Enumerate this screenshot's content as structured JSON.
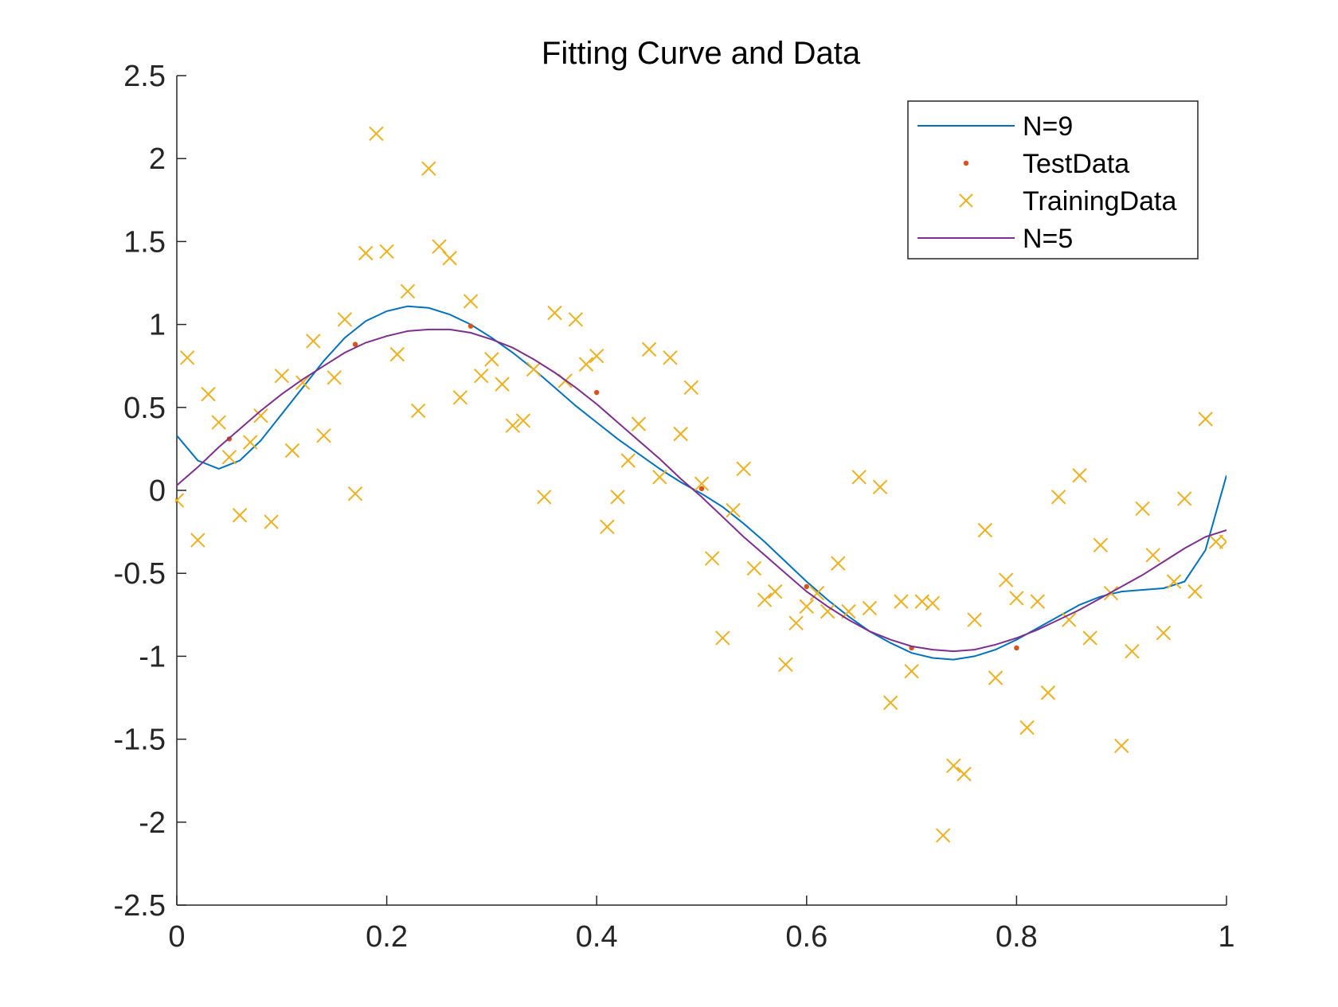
{
  "chart_data": {
    "type": "scatter",
    "title": "Fitting Curve and Data",
    "xlabel": "",
    "ylabel": "",
    "xlim": [
      0,
      1
    ],
    "ylim": [
      -2.5,
      2.5
    ],
    "x_ticks": [
      "0",
      "0.2",
      "0.4",
      "0.6",
      "0.8",
      "1"
    ],
    "y_ticks": [
      "2.5",
      "2",
      "1.5",
      "1",
      "0.5",
      "0",
      "-0.5",
      "-1",
      "-1.5",
      "-2",
      "-2.5"
    ],
    "grid": false,
    "legend_position": "top-right",
    "colors": {
      "n9": "#0072BD",
      "test": "#D95319",
      "train": "#EDB120",
      "n5": "#7E2F8E"
    },
    "legend": [
      "N=9",
      "TestData",
      "TrainingData",
      "N=5"
    ],
    "series": [
      {
        "name": "N=9",
        "kind": "line",
        "x": [
          0,
          0.02,
          0.04,
          0.06,
          0.08,
          0.1,
          0.12,
          0.14,
          0.16,
          0.18,
          0.2,
          0.22,
          0.24,
          0.26,
          0.28,
          0.3,
          0.32,
          0.34,
          0.36,
          0.38,
          0.4,
          0.42,
          0.44,
          0.46,
          0.48,
          0.5,
          0.52,
          0.54,
          0.56,
          0.58,
          0.6,
          0.62,
          0.64,
          0.66,
          0.68,
          0.7,
          0.72,
          0.74,
          0.76,
          0.78,
          0.8,
          0.82,
          0.84,
          0.86,
          0.88,
          0.9,
          0.92,
          0.94,
          0.96,
          0.98,
          1.0
        ],
        "y": [
          0.33,
          0.18,
          0.13,
          0.18,
          0.3,
          0.46,
          0.62,
          0.78,
          0.92,
          1.02,
          1.08,
          1.11,
          1.1,
          1.06,
          1.0,
          0.92,
          0.83,
          0.73,
          0.62,
          0.51,
          0.41,
          0.31,
          0.22,
          0.13,
          0.05,
          -0.02,
          -0.1,
          -0.2,
          -0.31,
          -0.43,
          -0.55,
          -0.66,
          -0.76,
          -0.85,
          -0.92,
          -0.98,
          -1.01,
          -1.02,
          -1.0,
          -0.96,
          -0.9,
          -0.83,
          -0.76,
          -0.69,
          -0.64,
          -0.61,
          -0.6,
          -0.59,
          -0.55,
          -0.36,
          0.09
        ]
      },
      {
        "name": "TestData",
        "kind": "points",
        "x": [
          0.05,
          0.17,
          0.28,
          0.4,
          0.5,
          0.6,
          0.7,
          0.8
        ],
        "y": [
          0.31,
          0.88,
          0.99,
          0.59,
          0.01,
          -0.58,
          -0.95,
          -0.95
        ]
      },
      {
        "name": "TrainingData",
        "kind": "markers",
        "x": [
          0.0,
          0.01,
          0.02,
          0.03,
          0.04,
          0.05,
          0.06,
          0.07,
          0.08,
          0.09,
          0.1,
          0.11,
          0.12,
          0.13,
          0.14,
          0.15,
          0.16,
          0.17,
          0.18,
          0.19,
          0.2,
          0.21,
          0.22,
          0.23,
          0.24,
          0.25,
          0.26,
          0.27,
          0.28,
          0.29,
          0.3,
          0.31,
          0.32,
          0.33,
          0.34,
          0.35,
          0.36,
          0.37,
          0.38,
          0.39,
          0.4,
          0.41,
          0.42,
          0.43,
          0.44,
          0.45,
          0.46,
          0.47,
          0.48,
          0.49,
          0.5,
          0.51,
          0.52,
          0.53,
          0.54,
          0.55,
          0.56,
          0.57,
          0.58,
          0.59,
          0.6,
          0.61,
          0.62,
          0.63,
          0.64,
          0.65,
          0.66,
          0.67,
          0.68,
          0.69,
          0.7,
          0.71,
          0.72,
          0.73,
          0.74,
          0.75,
          0.76,
          0.77,
          0.78,
          0.79,
          0.8,
          0.81,
          0.82,
          0.83,
          0.84,
          0.85,
          0.86,
          0.87,
          0.88,
          0.89,
          0.9,
          0.91,
          0.92,
          0.93,
          0.94,
          0.95,
          0.96,
          0.97,
          0.98,
          0.99,
          1.0
        ],
        "y": [
          -0.06,
          0.8,
          -0.3,
          0.58,
          0.41,
          0.2,
          -0.15,
          0.29,
          0.45,
          -0.19,
          0.69,
          0.24,
          0.65,
          0.9,
          0.33,
          0.68,
          1.03,
          -0.02,
          1.43,
          2.15,
          1.44,
          0.82,
          1.2,
          0.48,
          1.94,
          1.47,
          1.4,
          0.56,
          1.14,
          0.69,
          0.79,
          0.64,
          0.39,
          0.42,
          0.73,
          -0.04,
          1.07,
          0.66,
          1.03,
          0.76,
          0.81,
          -0.22,
          -0.04,
          0.18,
          0.4,
          0.85,
          0.08,
          0.8,
          0.34,
          0.62,
          0.04,
          -0.41,
          -0.89,
          -0.12,
          0.13,
          -0.47,
          -0.66,
          -0.61,
          -1.05,
          -0.8,
          -0.7,
          -0.62,
          -0.73,
          -0.44,
          -0.73,
          0.08,
          -0.71,
          0.02,
          -1.28,
          -0.67,
          -1.09,
          -0.67,
          -0.68,
          -2.08,
          -1.66,
          -1.71,
          -0.78,
          -0.24,
          -1.13,
          -0.54,
          -0.65,
          -1.43,
          -0.67,
          -1.22,
          -0.04,
          -0.78,
          0.09,
          -0.89,
          -0.33,
          -0.62,
          -1.54,
          -0.97,
          -0.11,
          -0.39,
          -0.86,
          -0.55,
          -0.05,
          -0.61,
          0.43,
          -0.31,
          -0.31
        ]
      },
      {
        "name": "N=5",
        "kind": "line",
        "x": [
          0,
          0.02,
          0.04,
          0.06,
          0.08,
          0.1,
          0.12,
          0.14,
          0.16,
          0.18,
          0.2,
          0.22,
          0.24,
          0.26,
          0.28,
          0.3,
          0.32,
          0.34,
          0.36,
          0.38,
          0.4,
          0.42,
          0.44,
          0.46,
          0.48,
          0.5,
          0.52,
          0.54,
          0.56,
          0.58,
          0.6,
          0.62,
          0.64,
          0.66,
          0.68,
          0.7,
          0.72,
          0.74,
          0.76,
          0.78,
          0.8,
          0.82,
          0.84,
          0.86,
          0.88,
          0.9,
          0.92,
          0.94,
          0.96,
          0.98,
          1.0
        ],
        "y": [
          0.03,
          0.14,
          0.26,
          0.37,
          0.48,
          0.58,
          0.67,
          0.75,
          0.83,
          0.89,
          0.93,
          0.96,
          0.97,
          0.97,
          0.95,
          0.91,
          0.86,
          0.79,
          0.71,
          0.62,
          0.52,
          0.41,
          0.3,
          0.19,
          0.07,
          -0.04,
          -0.16,
          -0.28,
          -0.39,
          -0.5,
          -0.61,
          -0.7,
          -0.78,
          -0.85,
          -0.9,
          -0.94,
          -0.96,
          -0.97,
          -0.96,
          -0.93,
          -0.89,
          -0.84,
          -0.78,
          -0.72,
          -0.65,
          -0.58,
          -0.51,
          -0.43,
          -0.35,
          -0.28,
          -0.24
        ]
      }
    ]
  }
}
